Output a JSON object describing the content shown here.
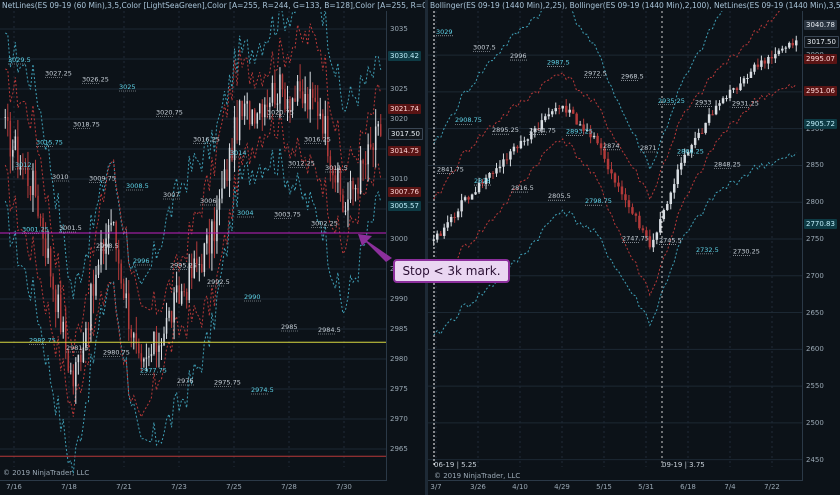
{
  "left": {
    "header": "NetLines(ES 09-19 (60 Min),3,5,Color [LightSeaGreen],Color [A=255, R=244, G=133, B=128],Color [A=255, R=0, G=131...",
    "copyright": "© 2019 NinjaTrader, LLC",
    "yaxis": {
      "min": 2962,
      "max": 3038,
      "ticks": [
        3035,
        3030,
        3025,
        3020,
        3015,
        3010,
        3005,
        3000,
        2995,
        2990,
        2985,
        2980,
        2975,
        2970,
        2965
      ]
    },
    "xaxis": [
      "7/16",
      "7/18",
      "7/21",
      "7/23",
      "7/25",
      "7/28",
      "7/30"
    ],
    "price_labels": [
      {
        "value": 3030.42,
        "text": "3030.42",
        "style": "teal"
      },
      {
        "value": 3021.74,
        "text": "3021.74",
        "style": "red"
      },
      {
        "value": 3017.5,
        "text": "3017.50",
        "style": "dark"
      },
      {
        "value": 3014.75,
        "text": "3014.75",
        "style": "red"
      },
      {
        "value": 3007.76,
        "text": "3007.76",
        "style": "red"
      },
      {
        "value": 3005.57,
        "text": "3005.57",
        "style": "teal"
      }
    ],
    "level_annotations": [
      "3029.5",
      "3027.25",
      "3026.25",
      "3025",
      "3020.75",
      "3016.25",
      "3014",
      "3020.75",
      "3016.25",
      "3012",
      "3010",
      "3009.75",
      "3008.5",
      "3007",
      "3006",
      "3004",
      "3003.75",
      "3002.25",
      "3001.25",
      "3001.5",
      "2998.5",
      "2996",
      "2995.25",
      "2992.5",
      "2990",
      "2985",
      "2984.5",
      "2982.75",
      "2981.5",
      "2980.75",
      "2977.75",
      "2976",
      "2975.75",
      "2974.5",
      "3012.25",
      "3011.5",
      "3015.75",
      "3018.75"
    ],
    "magenta_level": 3001,
    "yellow_level": 2982.8,
    "red_level": 2963.8
  },
  "right": {
    "header": "Bollinger(ES 09-19 (1440 Min),2,25), Bollinger(ES 09-19 (1440 Min),2,100), NetLines(ES 09-19 (1440 Min),3,5,Color [...",
    "copyright": "© 2019 NinjaTrader, LLC",
    "bottom_left": "06-19 | 5.25",
    "bottom_mid": "09-19 | 3.75",
    "yaxis": {
      "min": 2440,
      "max": 3060,
      "ticks": [
        3000,
        2950,
        2900,
        2850,
        2800,
        2750,
        2700,
        2650,
        2600,
        2550,
        2500,
        2450
      ]
    },
    "xaxis": [
      "3/7",
      "3/26",
      "4/10",
      "4/29",
      "5/15",
      "5/31",
      "6/18",
      "7/4",
      "7/22"
    ],
    "price_labels": [
      {
        "value": 3040.78,
        "text": "3040.78",
        "style": "gray"
      },
      {
        "value": 3017.5,
        "text": "3017.50",
        "style": "dark"
      },
      {
        "value": 2995.07,
        "text": "2995.07",
        "style": "red"
      },
      {
        "value": 2951.06,
        "text": "2951.06",
        "style": "red"
      },
      {
        "value": 2905.72,
        "text": "2905.72",
        "style": "teal"
      },
      {
        "value": 2770.83,
        "text": "2770.83",
        "style": "teal"
      }
    ],
    "level_annotations": [
      "3029",
      "3007.5",
      "2996",
      "2987.5",
      "2972.5",
      "2968.5",
      "2935.25",
      "2933",
      "2931.25",
      "2908.75",
      "2895.25",
      "2894.75",
      "2893.25",
      "2874",
      "2871",
      "2866.25",
      "2848.25",
      "2841.75",
      "2826",
      "2816.5",
      "2805.5",
      "2798.75",
      "2747.75",
      "2745.5",
      "2732.5",
      "2730.25"
    ]
  },
  "callout": {
    "text": "Stop < 3k mark."
  },
  "colors": {
    "bull": "#d8dde2",
    "bear": "#b33a3a",
    "teal_band": "#3f9fb6",
    "red_band": "#b83838",
    "magenta": "#c020c0",
    "yellow": "#d8d840",
    "purple": "#8c2f9c"
  }
}
